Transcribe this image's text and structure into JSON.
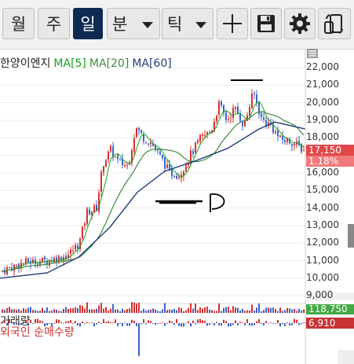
{
  "toolbar": {
    "monthly": "월",
    "weekly": "주",
    "daily": "일",
    "minute": "분",
    "tick": "틱"
  },
  "legend": {
    "name": "한양이엔지",
    "ma5": "MA[5]",
    "ma20": "MA[20]",
    "ma60": "MA[60]"
  },
  "axis": {
    "labels": [
      "22,000",
      "21,000",
      "20,000",
      "19,000",
      "18,000",
      "17,000",
      "16,000",
      "15,000",
      "14,000",
      "13,000",
      "12,000",
      "11,000",
      "10,000",
      "9,000"
    ]
  },
  "current": {
    "price": "17,150",
    "change": "1.18%"
  },
  "volume": {
    "label": "거래량",
    "value": "118,750"
  },
  "foreign": {
    "label": "외국인 순매수량",
    "value": "6,910"
  },
  "colors": {
    "ma5": "#1aa01a",
    "ma20": "#3c8c3c",
    "ma60": "#1e3c78",
    "up": "#d23232",
    "down": "#3c64c8",
    "active_tab": "#0e2a52"
  }
}
